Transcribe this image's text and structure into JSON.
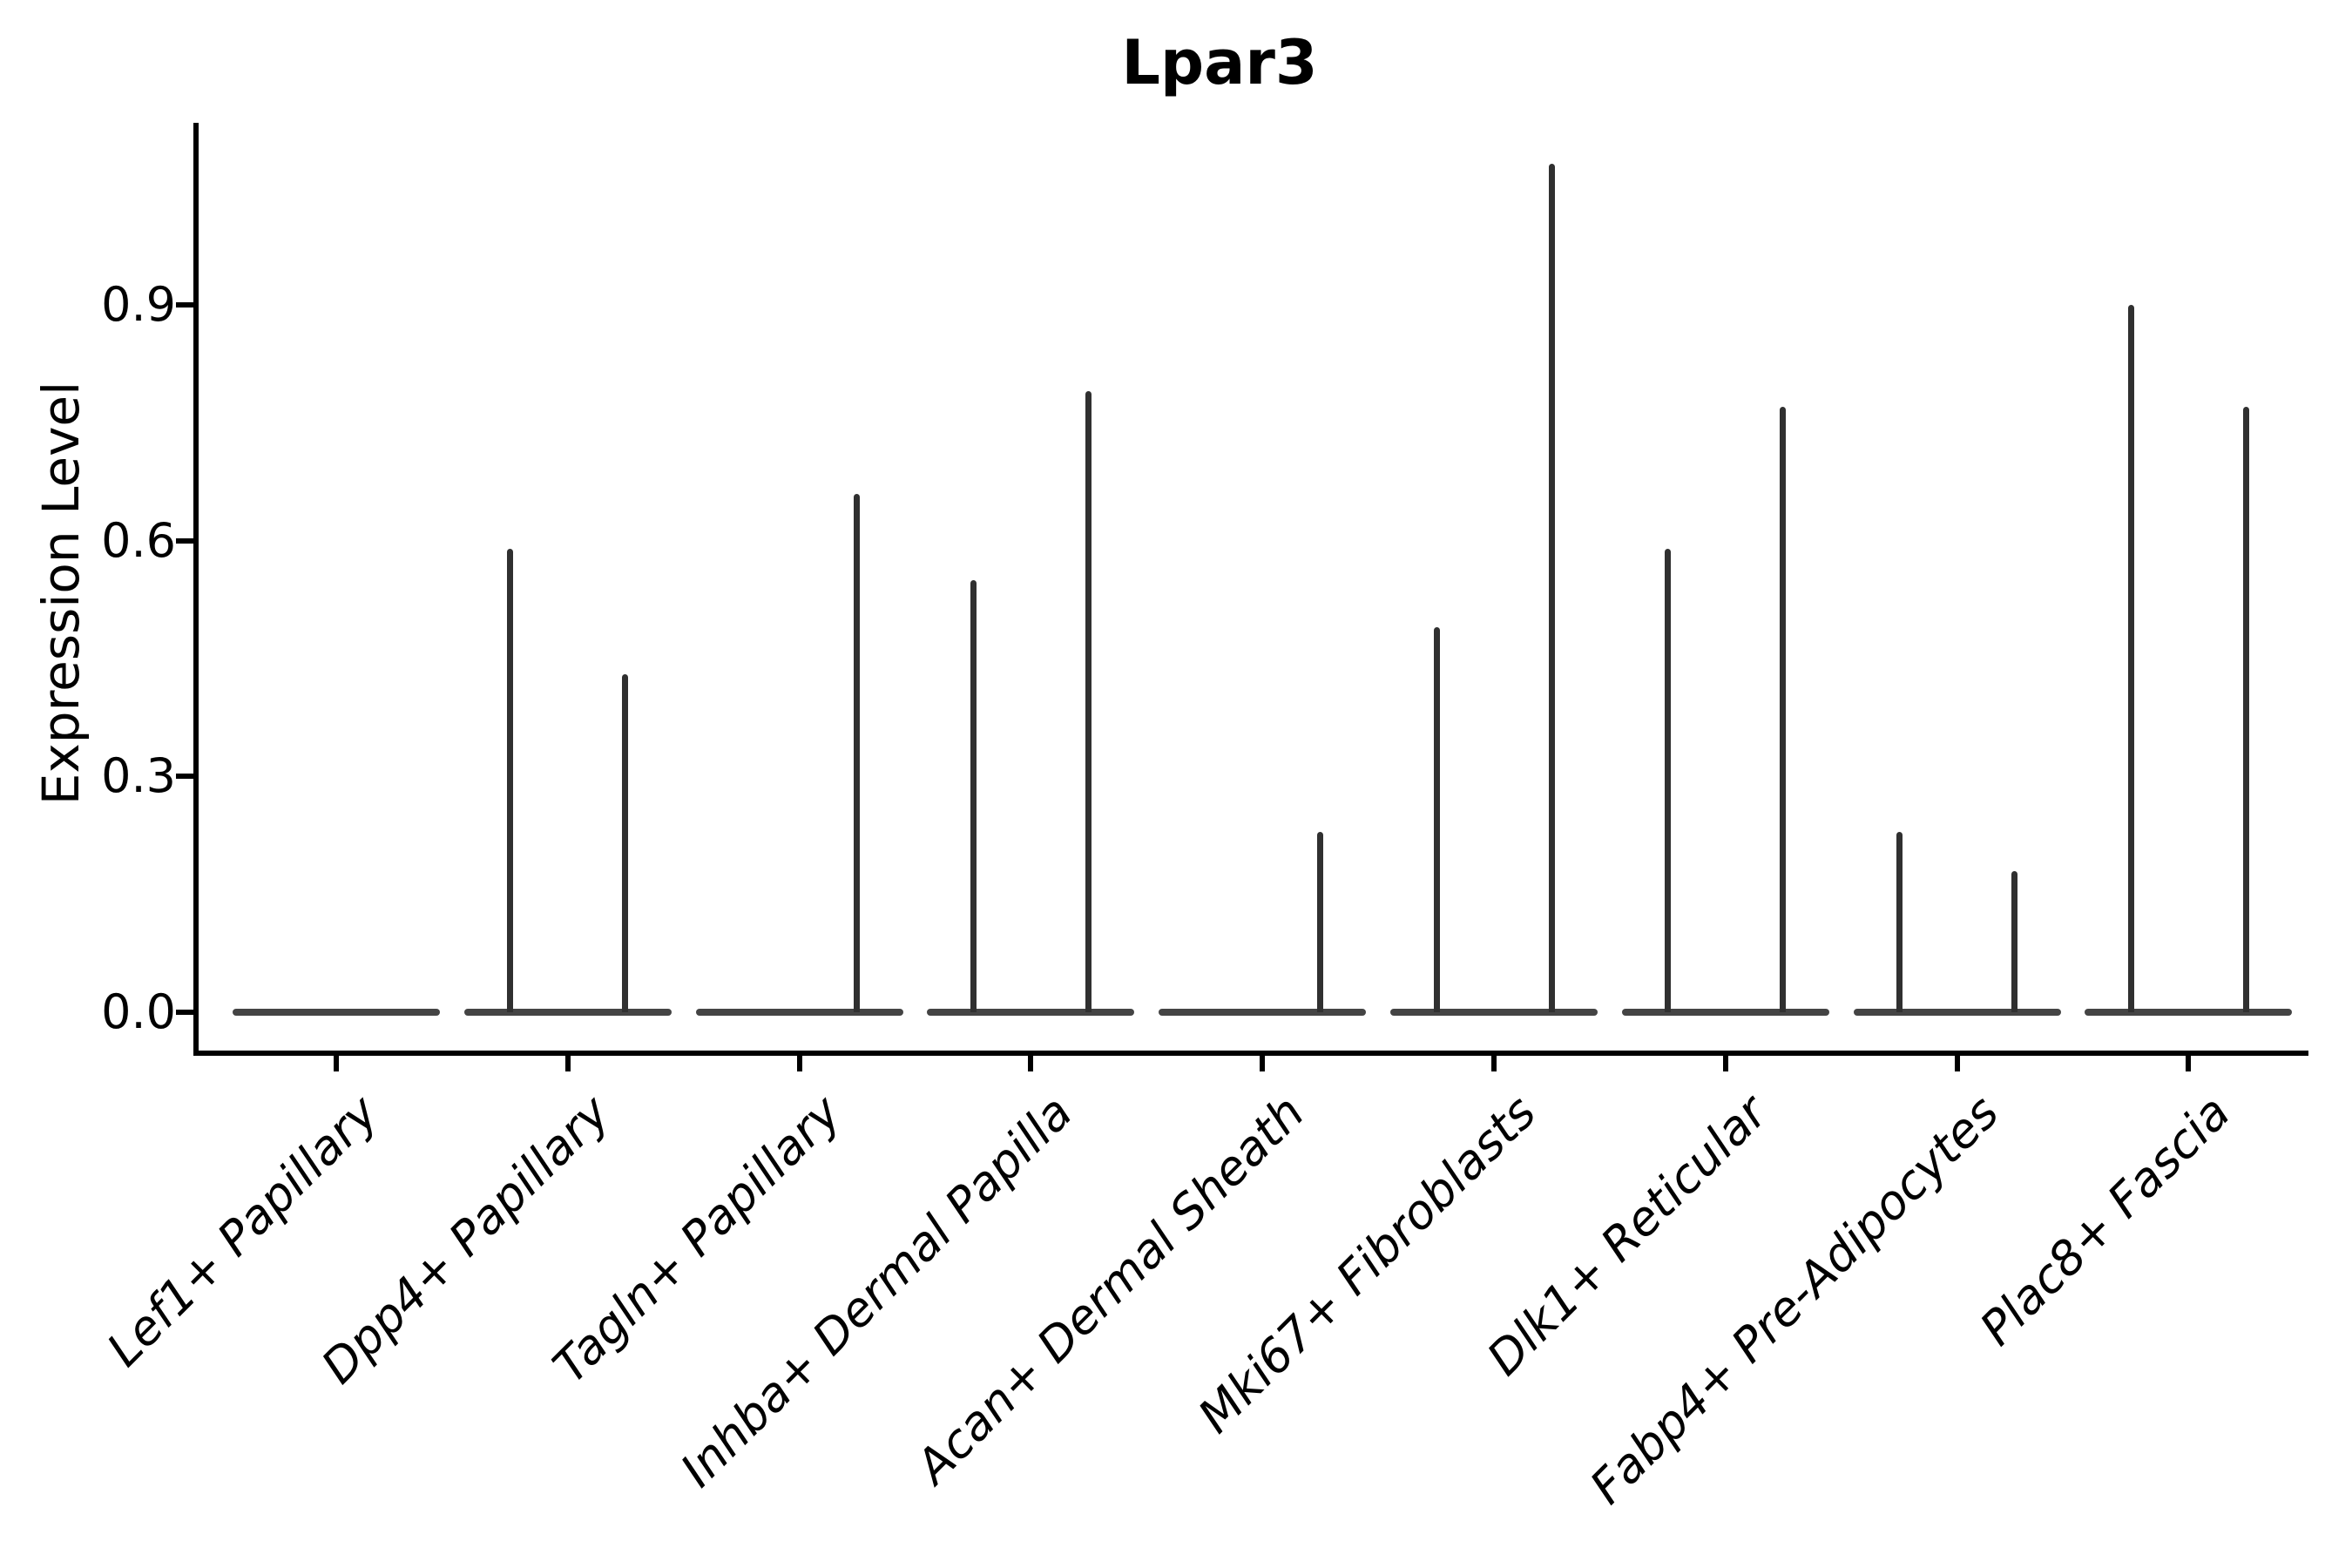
{
  "figure": {
    "title": "Lpar3"
  },
  "chart_data": {
    "type": "violin",
    "title": "Lpar3",
    "xlabel": "",
    "ylabel": "Expression Level",
    "ylim": [
      0,
      1.13
    ],
    "yticks": [
      0.0,
      0.3,
      0.6,
      0.9
    ],
    "ytick_labels": [
      "0.0",
      "0.3",
      "0.6",
      "0.9"
    ],
    "grid": false,
    "legend": "none",
    "categories": [
      "Lef1+ Papillary",
      "Dpp4+ Papillary",
      "Tagln+ Papillary",
      "Inhba+ Dermal Papilla",
      "Acan+ Dermal Sheath",
      "Mki67+ Fibroblasts",
      "Dlk1+ Reticular",
      "Fabp4+ Pre-Adipocytes",
      "Plac8+ Fascia"
    ],
    "violins_per_category": 2,
    "series": [
      {
        "category": "Lef1+ Papillary",
        "max_expression": [
          0.0,
          0.0
        ]
      },
      {
        "category": "Dpp4+ Papillary",
        "max_expression": [
          0.59,
          0.43
        ]
      },
      {
        "category": "Tagln+ Papillary",
        "max_expression": [
          0.0,
          0.66
        ]
      },
      {
        "category": "Inhba+ Dermal Papilla",
        "max_expression": [
          0.55,
          0.79
        ]
      },
      {
        "category": "Acan+ Dermal Sheath",
        "max_expression": [
          0.0,
          0.23
        ]
      },
      {
        "category": "Mki67+ Fibroblasts",
        "max_expression": [
          0.49,
          1.08
        ]
      },
      {
        "category": "Dlk1+ Reticular",
        "max_expression": [
          0.59,
          0.77
        ]
      },
      {
        "category": "Fabp4+ Pre-Adipocytes",
        "max_expression": [
          0.23,
          0.18
        ]
      },
      {
        "category": "Plac8+ Fascia",
        "max_expression": [
          0.9,
          0.77
        ]
      }
    ],
    "colors": {
      "spike": "#303030",
      "baseline": "#444444",
      "spine": "#000000",
      "text": "#000000",
      "background": "#ffffff"
    }
  }
}
